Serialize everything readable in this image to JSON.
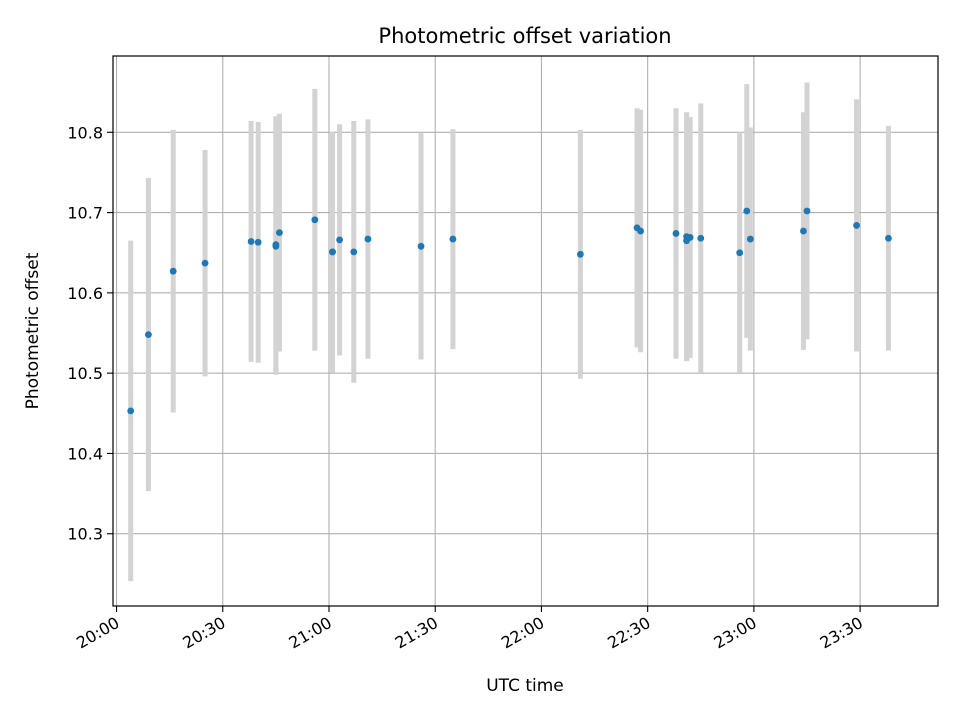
{
  "chart_data": {
    "type": "scatter",
    "title": "Photometric offset variation",
    "xlabel": "UTC time",
    "ylabel": "Photometric offset",
    "grid": true,
    "legend": "none",
    "xlim": [
      "19:59",
      "23:52"
    ],
    "ylim": [
      10.21,
      10.895
    ],
    "x_ticks": [
      "20:00",
      "20:30",
      "21:00",
      "21:30",
      "22:00",
      "22:30",
      "23:00",
      "23:30"
    ],
    "y_ticks": [
      "10.3",
      "10.4",
      "10.5",
      "10.6",
      "10.7",
      "10.8"
    ],
    "colors": {
      "point": "#1f77b4",
      "errorbar": "#d3d3d3",
      "grid": "#b0b0b0"
    },
    "series": [
      {
        "x": [
          "20:04",
          "20:09",
          "20:16",
          "20:25",
          "20:38",
          "20:40",
          "20:45",
          "20:45",
          "20:46",
          "20:56",
          "21:01",
          "21:01",
          "21:03",
          "21:07",
          "21:11",
          "21:26",
          "21:35",
          "22:11",
          "22:27",
          "22:28",
          "22:38",
          "22:41",
          "22:41",
          "22:42",
          "22:45",
          "22:56",
          "22:58",
          "22:59",
          "23:14",
          "23:15",
          "23:29",
          "23:38"
        ],
        "y": [
          10.453,
          10.548,
          10.627,
          10.637,
          10.664,
          10.663,
          10.658,
          10.66,
          10.675,
          10.691,
          10.651,
          10.651,
          10.666,
          10.651,
          10.667,
          10.658,
          10.667,
          10.648,
          10.681,
          10.677,
          10.674,
          10.67,
          10.665,
          10.669,
          10.668,
          10.65,
          10.702,
          10.667,
          10.677,
          10.702,
          10.684,
          10.668
        ],
        "yerr": [
          0.212,
          0.195,
          0.176,
          0.141,
          0.15,
          0.15,
          0.16,
          0.16,
          0.148,
          0.163,
          0.15,
          0.15,
          0.144,
          0.163,
          0.149,
          0.141,
          0.137,
          0.155,
          0.149,
          0.151,
          0.156,
          0.155,
          0.15,
          0.15,
          0.168,
          0.15,
          0.158,
          0.139,
          0.148,
          0.16,
          0.157,
          0.14
        ]
      }
    ]
  }
}
